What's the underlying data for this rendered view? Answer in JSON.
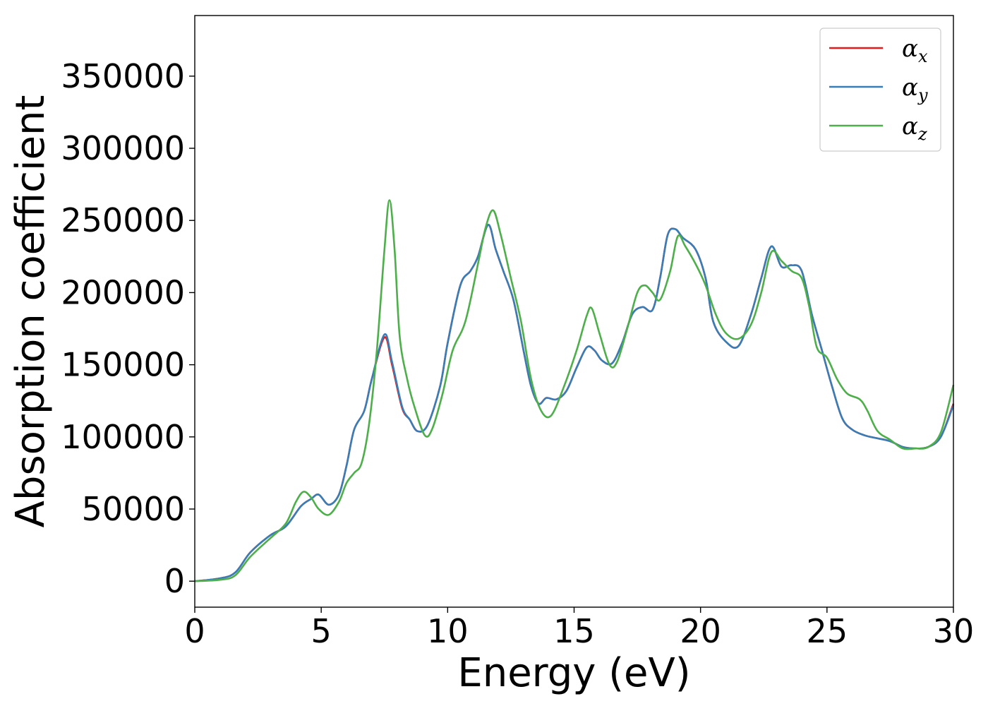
{
  "chart_data": {
    "type": "line",
    "xlabel": "Energy (eV)",
    "ylabel": "Absorption coefficient",
    "xlim": [
      0,
      30
    ],
    "ylim": [
      -18000,
      392000
    ],
    "xticks": [
      0,
      5,
      10,
      15,
      20,
      25,
      30
    ],
    "xtick_labels": [
      "0",
      "5",
      "10",
      "15",
      "20",
      "25",
      "30"
    ],
    "yticks": [
      0,
      50000,
      100000,
      150000,
      200000,
      250000,
      300000,
      350000
    ],
    "ytick_labels": [
      "0",
      "50000",
      "100000",
      "150000",
      "200000",
      "250000",
      "300000",
      "350000"
    ],
    "grid": false,
    "legend_position": "top-right",
    "series": [
      {
        "name": "α_x",
        "legend_base": "α",
        "legend_sub": "x",
        "color": "#e41a1c",
        "points": [
          [
            0,
            0
          ],
          [
            1,
            2000
          ],
          [
            1.6,
            6000
          ],
          [
            2.2,
            20000
          ],
          [
            3,
            32000
          ],
          [
            3.6,
            38000
          ],
          [
            4.2,
            52000
          ],
          [
            4.6,
            57000
          ],
          [
            4.9,
            60000
          ],
          [
            5.3,
            53000
          ],
          [
            5.7,
            60000
          ],
          [
            6,
            80000
          ],
          [
            6.3,
            105000
          ],
          [
            6.7,
            118000
          ],
          [
            7,
            140000
          ],
          [
            7.5,
            169000
          ],
          [
            7.8,
            150000
          ],
          [
            8.2,
            120000
          ],
          [
            8.5,
            112000
          ],
          [
            8.8,
            104000
          ],
          [
            9.2,
            108000
          ],
          [
            9.7,
            135000
          ],
          [
            10,
            165000
          ],
          [
            10.5,
            205000
          ],
          [
            10.9,
            215000
          ],
          [
            11.2,
            225000
          ],
          [
            11.6,
            247000
          ],
          [
            11.9,
            230000
          ],
          [
            12.2,
            215000
          ],
          [
            12.6,
            195000
          ],
          [
            13,
            160000
          ],
          [
            13.3,
            135000
          ],
          [
            13.6,
            123000
          ],
          [
            13.9,
            127000
          ],
          [
            14.3,
            126000
          ],
          [
            14.7,
            132000
          ],
          [
            15.1,
            148000
          ],
          [
            15.5,
            162000
          ],
          [
            15.8,
            160000
          ],
          [
            16.1,
            153000
          ],
          [
            16.5,
            151000
          ],
          [
            16.9,
            165000
          ],
          [
            17.3,
            185000
          ],
          [
            17.7,
            190000
          ],
          [
            18.1,
            188000
          ],
          [
            18.4,
            210000
          ],
          [
            18.7,
            240000
          ],
          [
            19,
            244000
          ],
          [
            19.3,
            238000
          ],
          [
            19.8,
            230000
          ],
          [
            20.2,
            210000
          ],
          [
            20.5,
            180000
          ],
          [
            21,
            166000
          ],
          [
            21.5,
            163000
          ],
          [
            22,
            185000
          ],
          [
            22.4,
            210000
          ],
          [
            22.8,
            232000
          ],
          [
            23.2,
            218000
          ],
          [
            23.6,
            219000
          ],
          [
            24,
            215000
          ],
          [
            24.4,
            185000
          ],
          [
            24.8,
            160000
          ],
          [
            25.2,
            135000
          ],
          [
            25.6,
            113000
          ],
          [
            26,
            105000
          ],
          [
            26.5,
            101000
          ],
          [
            27,
            99000
          ],
          [
            27.5,
            97000
          ],
          [
            28,
            93000
          ],
          [
            28.5,
            92000
          ],
          [
            29,
            93000
          ],
          [
            29.5,
            100000
          ],
          [
            30,
            123000
          ]
        ]
      },
      {
        "name": "α_y",
        "legend_base": "α",
        "legend_sub": "y",
        "color": "#377eb8",
        "points": [
          [
            0,
            0
          ],
          [
            1,
            2000
          ],
          [
            1.6,
            6000
          ],
          [
            2.2,
            20000
          ],
          [
            3,
            32000
          ],
          [
            3.6,
            38000
          ],
          [
            4.2,
            52000
          ],
          [
            4.6,
            57000
          ],
          [
            4.9,
            60000
          ],
          [
            5.3,
            53000
          ],
          [
            5.7,
            60000
          ],
          [
            6,
            80000
          ],
          [
            6.3,
            105000
          ],
          [
            6.7,
            118000
          ],
          [
            7,
            140000
          ],
          [
            7.5,
            171000
          ],
          [
            7.8,
            152000
          ],
          [
            8.2,
            121000
          ],
          [
            8.5,
            112000
          ],
          [
            8.8,
            104000
          ],
          [
            9.2,
            108000
          ],
          [
            9.7,
            135000
          ],
          [
            10,
            165000
          ],
          [
            10.5,
            205000
          ],
          [
            10.9,
            215000
          ],
          [
            11.2,
            225000
          ],
          [
            11.6,
            247000
          ],
          [
            11.9,
            230000
          ],
          [
            12.2,
            215000
          ],
          [
            12.6,
            195000
          ],
          [
            13,
            160000
          ],
          [
            13.3,
            135000
          ],
          [
            13.6,
            123000
          ],
          [
            13.9,
            127000
          ],
          [
            14.3,
            126000
          ],
          [
            14.7,
            132000
          ],
          [
            15.1,
            148000
          ],
          [
            15.5,
            162000
          ],
          [
            15.8,
            160000
          ],
          [
            16.1,
            153000
          ],
          [
            16.5,
            151000
          ],
          [
            16.9,
            165000
          ],
          [
            17.3,
            185000
          ],
          [
            17.7,
            190000
          ],
          [
            18.1,
            188000
          ],
          [
            18.4,
            210000
          ],
          [
            18.7,
            240000
          ],
          [
            19,
            244000
          ],
          [
            19.3,
            238000
          ],
          [
            19.8,
            230000
          ],
          [
            20.2,
            210000
          ],
          [
            20.5,
            180000
          ],
          [
            21,
            166000
          ],
          [
            21.5,
            163000
          ],
          [
            22,
            185000
          ],
          [
            22.4,
            210000
          ],
          [
            22.8,
            232000
          ],
          [
            23.2,
            218000
          ],
          [
            23.6,
            219000
          ],
          [
            24,
            215000
          ],
          [
            24.4,
            185000
          ],
          [
            24.8,
            160000
          ],
          [
            25.2,
            135000
          ],
          [
            25.6,
            113000
          ],
          [
            26,
            105000
          ],
          [
            26.5,
            101000
          ],
          [
            27,
            99000
          ],
          [
            27.5,
            97000
          ],
          [
            28,
            93000
          ],
          [
            28.5,
            92000
          ],
          [
            29,
            93000
          ],
          [
            29.5,
            100000
          ],
          [
            30,
            122000
          ]
        ]
      },
      {
        "name": "α_z",
        "legend_base": "α",
        "legend_sub": "z",
        "color": "#4daf4a",
        "points": [
          [
            0,
            0
          ],
          [
            1,
            1000
          ],
          [
            1.6,
            4000
          ],
          [
            2.2,
            17000
          ],
          [
            3,
            30000
          ],
          [
            3.6,
            40000
          ],
          [
            4.0,
            55000
          ],
          [
            4.3,
            62000
          ],
          [
            4.6,
            58000
          ],
          [
            4.9,
            50000
          ],
          [
            5.3,
            46000
          ],
          [
            5.7,
            55000
          ],
          [
            6,
            68000
          ],
          [
            6.3,
            75000
          ],
          [
            6.6,
            82000
          ],
          [
            6.9,
            110000
          ],
          [
            7.2,
            160000
          ],
          [
            7.5,
            230000
          ],
          [
            7.7,
            264000
          ],
          [
            7.9,
            230000
          ],
          [
            8.1,
            170000
          ],
          [
            8.4,
            140000
          ],
          [
            8.7,
            120000
          ],
          [
            9.1,
            101000
          ],
          [
            9.4,
            106000
          ],
          [
            9.8,
            130000
          ],
          [
            10.2,
            160000
          ],
          [
            10.7,
            180000
          ],
          [
            11.2,
            220000
          ],
          [
            11.5,
            245000
          ],
          [
            11.8,
            257000
          ],
          [
            12.1,
            240000
          ],
          [
            12.5,
            210000
          ],
          [
            12.9,
            180000
          ],
          [
            13.3,
            140000
          ],
          [
            13.7,
            118000
          ],
          [
            14.1,
            115000
          ],
          [
            14.6,
            135000
          ],
          [
            15.1,
            160000
          ],
          [
            15.5,
            184000
          ],
          [
            15.7,
            189000
          ],
          [
            16,
            172000
          ],
          [
            16.4,
            150000
          ],
          [
            16.7,
            152000
          ],
          [
            17.1,
            175000
          ],
          [
            17.5,
            200000
          ],
          [
            17.8,
            205000
          ],
          [
            18.1,
            200000
          ],
          [
            18.4,
            195000
          ],
          [
            18.8,
            215000
          ],
          [
            19.1,
            239000
          ],
          [
            19.4,
            232000
          ],
          [
            19.8,
            220000
          ],
          [
            20.2,
            205000
          ],
          [
            20.6,
            185000
          ],
          [
            21,
            172000
          ],
          [
            21.5,
            168000
          ],
          [
            22,
            178000
          ],
          [
            22.4,
            200000
          ],
          [
            22.8,
            228000
          ],
          [
            23.2,
            222000
          ],
          [
            23.6,
            215000
          ],
          [
            24,
            210000
          ],
          [
            24.3,
            190000
          ],
          [
            24.6,
            162000
          ],
          [
            25,
            155000
          ],
          [
            25.4,
            140000
          ],
          [
            25.8,
            130000
          ],
          [
            26.3,
            126000
          ],
          [
            26.6,
            118000
          ],
          [
            27,
            104000
          ],
          [
            27.5,
            98000
          ],
          [
            28,
            92000
          ],
          [
            28.5,
            92000
          ],
          [
            29,
            93000
          ],
          [
            29.5,
            103000
          ],
          [
            30,
            136000
          ]
        ]
      }
    ]
  }
}
